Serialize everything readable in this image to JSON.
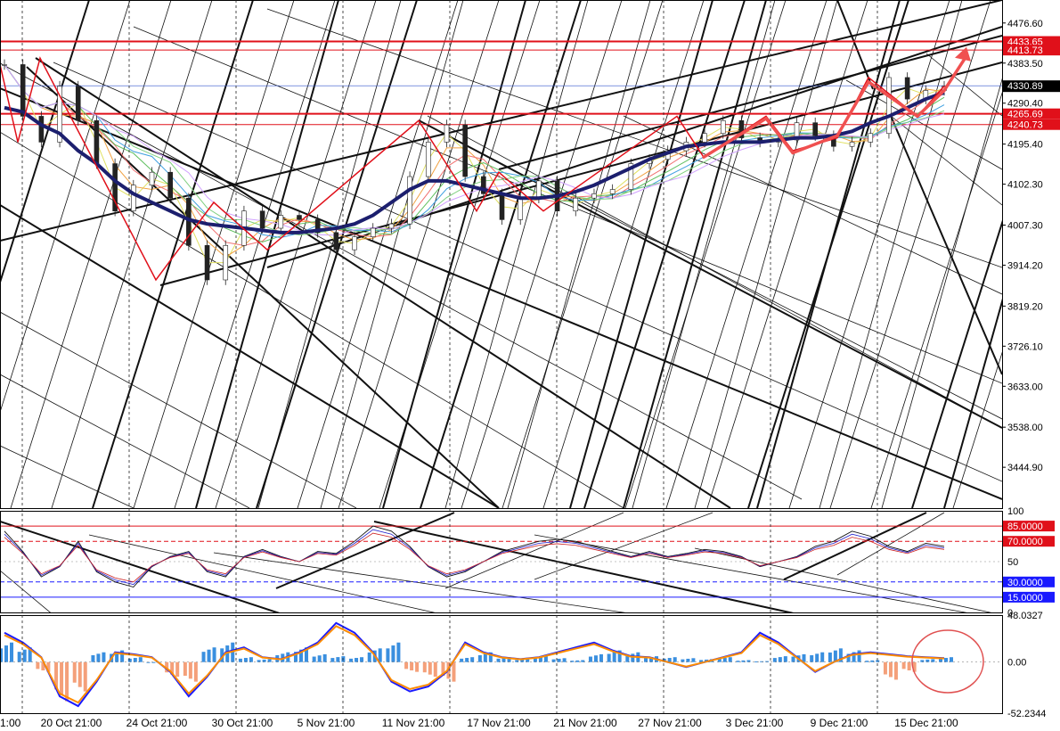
{
  "chart_data": {
    "type": "line",
    "price_panel": {
      "ylim": [
        3350,
        4530
      ],
      "y_ticks": [
        "4476.60",
        "4383.50",
        "4290.40",
        "4195.40",
        "4102.30",
        "4007.30",
        "3914.20",
        "3819.20",
        "3726.10",
        "3633.00",
        "3538.00",
        "3444.90"
      ],
      "current_price": "4330.89",
      "red_levels": [
        {
          "value": 4433.65,
          "label": "4433.65"
        },
        {
          "value": 4413.73,
          "label": "4413.73"
        },
        {
          "value": 4265.69,
          "label": "4265.69"
        },
        {
          "value": 4240.73,
          "label": "4240.73"
        }
      ],
      "price_series": [
        4380,
        4260,
        4200,
        4330,
        4250,
        4150,
        4040,
        4100,
        4130,
        4070,
        3960,
        3880,
        3960,
        4040,
        4000,
        4030,
        4020,
        3990,
        3950,
        3980,
        4000,
        4010,
        4120,
        4200,
        4240,
        4120,
        4080,
        4020,
        4070,
        4110,
        4040,
        4070,
        4080,
        4090,
        4150,
        4160,
        4180,
        4200,
        4220,
        4250,
        4210,
        4200,
        4205,
        4245,
        4215,
        4190,
        4200,
        4220,
        4350,
        4300,
        4320,
        4330
      ],
      "slow_ma": [
        4280,
        4270,
        4240,
        4220,
        4180,
        4150,
        4110,
        4080,
        4060,
        4040,
        4020,
        4010,
        4005,
        4000,
        3995,
        3990,
        3990,
        3995,
        4000,
        4010,
        4030,
        4060,
        4090,
        4110,
        4110,
        4100,
        4090,
        4080,
        4070,
        4070,
        4075,
        4085,
        4100,
        4120,
        4140,
        4160,
        4175,
        4190,
        4195,
        4200,
        4200,
        4200,
        4205,
        4210,
        4210,
        4215,
        4225,
        4245,
        4260,
        4280,
        4300,
        4315
      ]
    },
    "rsi_panel": {
      "ylim": [
        0,
        100
      ],
      "y_ticks": [
        "100",
        "50",
        "0"
      ],
      "levels": [
        {
          "value": 85,
          "label": "85.0000",
          "color": "#e0101a"
        },
        {
          "value": 70,
          "label": "70.0000",
          "color": "#e0101a"
        },
        {
          "value": 30,
          "label": "30.0000",
          "color": "#1a1aff"
        },
        {
          "value": 15,
          "label": "15.0000",
          "color": "#1a1aff"
        }
      ],
      "rsi_series": [
        80,
        60,
        35,
        45,
        70,
        40,
        30,
        25,
        45,
        55,
        60,
        40,
        35,
        55,
        62,
        55,
        50,
        60,
        58,
        70,
        85,
        80,
        65,
        45,
        35,
        40,
        50,
        60,
        65,
        70,
        72,
        70,
        65,
        60,
        55,
        60,
        55,
        58,
        62,
        60,
        55,
        45,
        50,
        55,
        65,
        70,
        80,
        75,
        65,
        60,
        68,
        65
      ]
    },
    "macd_panel": {
      "ylim": [
        -52.2344,
        48.0327
      ],
      "y_ticks": [
        "48.0327",
        "0.00",
        "-52.2344"
      ],
      "histogram": [
        20,
        15,
        -10,
        -40,
        -30,
        10,
        12,
        5,
        0,
        -15,
        -20,
        15,
        20,
        5,
        3,
        10,
        15,
        8,
        6,
        5,
        14,
        20,
        -10,
        -15,
        -20,
        5,
        10,
        5,
        3,
        6,
        4,
        2,
        8,
        12,
        10,
        6,
        5,
        4,
        3,
        5,
        2,
        1,
        6,
        8,
        10,
        14,
        12,
        2,
        -18,
        -10,
        3,
        5
      ],
      "macd_line": [
        30,
        20,
        5,
        -35,
        -45,
        -20,
        10,
        8,
        5,
        -10,
        -35,
        -15,
        10,
        15,
        5,
        3,
        10,
        20,
        40,
        30,
        10,
        -20,
        -30,
        -25,
        -10,
        20,
        10,
        5,
        3,
        5,
        10,
        15,
        20,
        12,
        6,
        5,
        0,
        -5,
        0,
        5,
        10,
        30,
        20,
        5,
        -10,
        0,
        8,
        10,
        8,
        6,
        5,
        4
      ]
    },
    "x_ticks": [
      "1:00",
      "20 Oct 21:00",
      "24 Oct 21:00",
      "30 Oct 21:00",
      "5 Nov 21:00",
      "11 Nov 21:00",
      "17 Nov 21:00",
      "21 Nov 21:00",
      "27 Nov 21:00",
      "3 Dec 21:00",
      "9 Dec 21:00",
      "15 Dec 21:00"
    ]
  },
  "colors": {
    "price_line": "#1a1a1a",
    "slow_ma": "#1c1f6e",
    "red_lines": "#e0101a",
    "red_arrows": "#f05050",
    "macd_line": "#1a1aff",
    "signal_line": "#ff8c00",
    "hist_up": "#3a8fdf",
    "hist_down": "#f4a07a",
    "current_label_bg": "#000000"
  }
}
